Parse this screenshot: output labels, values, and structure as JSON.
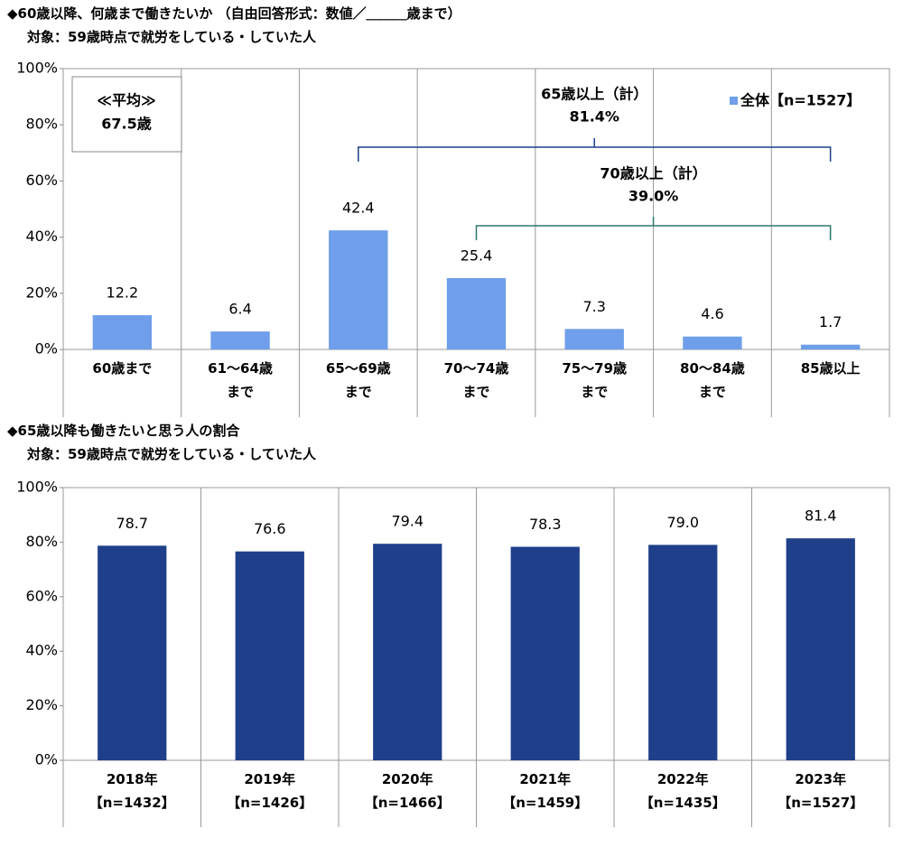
{
  "chart_data": [
    {
      "type": "bar",
      "title": "◆60歳以降、何歳まで働きたいか （自由回答形式：数値／＿＿＿歳まで）",
      "subtitle": "対象：59歳時点で就労をしている・していた人",
      "categories": [
        "60歳まで",
        "61～64歳\nまで",
        "65～69歳\nまで",
        "70～74歳\nまで",
        "75～79歳\nまで",
        "80～84歳\nまで",
        "85歳以上"
      ],
      "series": [
        {
          "name": "全体【n=1527】",
          "color": "#6f9eea",
          "values": [
            12.2,
            6.4,
            42.4,
            25.4,
            7.3,
            4.6,
            1.7
          ]
        }
      ],
      "ylim": [
        0,
        100
      ],
      "yticks": [
        {
          "value": 0,
          "label": "0%"
        },
        {
          "value": 20,
          "label": "20%"
        },
        {
          "value": 40,
          "label": "40%"
        },
        {
          "value": 60,
          "label": "60%"
        },
        {
          "value": 80,
          "label": "80%"
        },
        {
          "value": 100,
          "label": "100%"
        }
      ],
      "legend": "top-right",
      "average_box": [
        "≪平均≫",
        "67.5歳"
      ],
      "annotations": [
        {
          "label": "65歳以上（計）",
          "value": "81.4%",
          "color": "#1f3f8a"
        },
        {
          "label": "70歳以上（計）",
          "value": "39.0%",
          "color": "#2b7a6a"
        }
      ]
    },
    {
      "type": "bar",
      "title": "◆65歳以降も働きたいと思う人の割合",
      "subtitle": "対象：59歳時点で就労をしている・していた人",
      "categories": [
        "2018年\n【n=1432】",
        "2019年\n【n=1426】",
        "2020年\n【n=1466】",
        "2021年\n【n=1459】",
        "2022年\n【n=1435】",
        "2023年\n【n=1527】"
      ],
      "values": [
        78.7,
        76.6,
        79.4,
        78.3,
        79.0,
        81.4
      ],
      "value_labels": [
        "78.7",
        "76.6",
        "79.4",
        "78.3",
        "79.0",
        "81.4"
      ],
      "color": "#1f3f8a",
      "ylim": [
        0,
        100
      ],
      "yticks": [
        {
          "value": 0,
          "label": "0%"
        },
        {
          "value": 20,
          "label": "20%"
        },
        {
          "value": 40,
          "label": "40%"
        },
        {
          "value": 60,
          "label": "60%"
        },
        {
          "value": 80,
          "label": "80%"
        },
        {
          "value": 100,
          "label": "100%"
        }
      ]
    }
  ]
}
